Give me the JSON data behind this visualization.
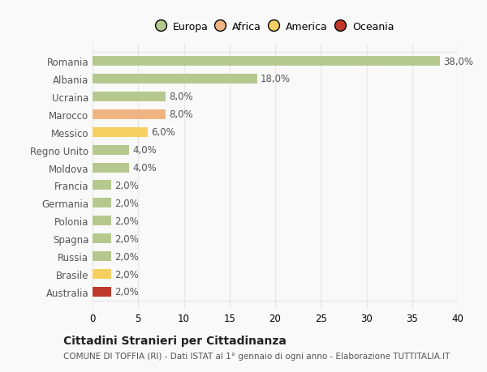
{
  "countries": [
    "Romania",
    "Albania",
    "Ucraina",
    "Marocco",
    "Messico",
    "Regno Unito",
    "Moldova",
    "Francia",
    "Germania",
    "Polonia",
    "Spagna",
    "Russia",
    "Brasile",
    "Australia"
  ],
  "values": [
    38.0,
    18.0,
    8.0,
    8.0,
    6.0,
    4.0,
    4.0,
    2.0,
    2.0,
    2.0,
    2.0,
    2.0,
    2.0,
    2.0
  ],
  "bar_colors": [
    "#b5c98e",
    "#b5c98e",
    "#b5c98e",
    "#f0b482",
    "#f5d060",
    "#b5c98e",
    "#b5c98e",
    "#b5c98e",
    "#b5c98e",
    "#b5c98e",
    "#b5c98e",
    "#b5c98e",
    "#f5d060",
    "#c0392b"
  ],
  "legend_labels": [
    "Europa",
    "Africa",
    "America",
    "Oceania"
  ],
  "legend_colors": [
    "#b5c98e",
    "#f0b482",
    "#f5d060",
    "#c0392b"
  ],
  "title": "Cittadini Stranieri per Cittadinanza",
  "subtitle": "COMUNE DI TOFFIA (RI) - Dati ISTAT al 1° gennaio di ogni anno - Elaborazione TUTTITALIA.IT",
  "xlim": [
    0,
    40
  ],
  "xticks": [
    0,
    5,
    10,
    15,
    20,
    25,
    30,
    35,
    40
  ],
  "bg_color": "#f9f9f9",
  "grid_color": "#e8e8e8",
  "bar_height": 0.55,
  "value_labels": [
    "38,0%",
    "18,0%",
    "8,0%",
    "8,0%",
    "6,0%",
    "4,0%",
    "4,0%",
    "2,0%",
    "2,0%",
    "2,0%",
    "2,0%",
    "2,0%",
    "2,0%",
    "2,0%"
  ],
  "label_color": "#555555",
  "title_fontsize": 10,
  "subtitle_fontsize": 7.5,
  "tick_fontsize": 8.5,
  "value_fontsize": 8.5,
  "legend_fontsize": 9
}
